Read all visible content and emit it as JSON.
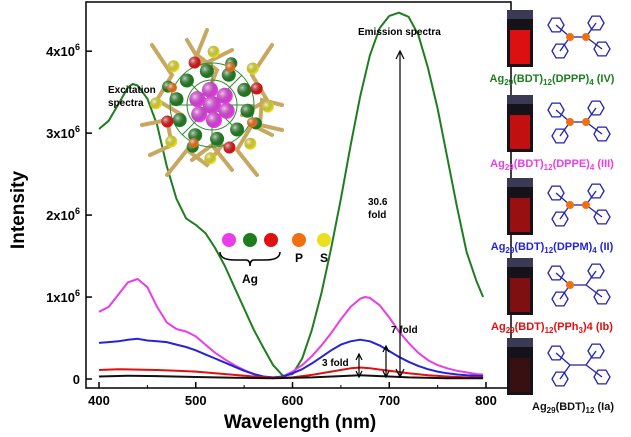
{
  "chart_data": {
    "type": "line",
    "xlabel": "Wavelength (nm)",
    "ylabel": "Intensity",
    "xlim": [
      400,
      800
    ],
    "ylim": [
      0,
      4600000
    ],
    "x_ticks": [
      "400",
      "500",
      "600",
      "700",
      "800"
    ],
    "y_ticks": [
      {
        "v": 0,
        "base": "0",
        "exp": ""
      },
      {
        "v": 1000000,
        "base": "1x10",
        "exp": "6"
      },
      {
        "v": 2000000,
        "base": "2x10",
        "exp": "6"
      },
      {
        "v": 3000000,
        "base": "3x10",
        "exp": "6"
      },
      {
        "v": 4000000,
        "base": "4x10",
        "exp": "6"
      }
    ],
    "annotations": {
      "excitation_line1": "Excitation",
      "excitation_line2": "spectra",
      "emission": "Emission spectra",
      "fold_30_line1": "30.6",
      "fold_30_line2": "fold",
      "fold_7": "7 fold",
      "fold_3": "3 fold"
    },
    "series": [
      {
        "name": "Ag29(BDT)12(DPPP)4 (IV)",
        "color": "#1e7d1e",
        "points": [
          [
            400,
            3050000
          ],
          [
            410,
            3150000
          ],
          [
            420,
            3350000
          ],
          [
            430,
            3560000
          ],
          [
            435,
            3600000
          ],
          [
            440,
            3580000
          ],
          [
            450,
            3420000
          ],
          [
            460,
            3100000
          ],
          [
            470,
            2600000
          ],
          [
            480,
            2200000
          ],
          [
            490,
            1960000
          ],
          [
            500,
            1880000
          ],
          [
            510,
            1780000
          ],
          [
            520,
            1600000
          ],
          [
            530,
            1380000
          ],
          [
            540,
            1120000
          ],
          [
            550,
            860000
          ],
          [
            560,
            600000
          ],
          [
            570,
            380000
          ],
          [
            580,
            170000
          ],
          [
            590,
            40000
          ],
          [
            600,
            60000
          ],
          [
            610,
            250000
          ],
          [
            620,
            600000
          ],
          [
            630,
            1050000
          ],
          [
            640,
            1600000
          ],
          [
            650,
            2200000
          ],
          [
            660,
            2850000
          ],
          [
            670,
            3450000
          ],
          [
            680,
            3950000
          ],
          [
            690,
            4280000
          ],
          [
            700,
            4430000
          ],
          [
            710,
            4470000
          ],
          [
            720,
            4420000
          ],
          [
            730,
            4200000
          ],
          [
            740,
            3800000
          ],
          [
            750,
            3300000
          ],
          [
            760,
            2700000
          ],
          [
            770,
            2100000
          ],
          [
            780,
            1550000
          ],
          [
            790,
            1200000
          ],
          [
            797,
            1000000
          ]
        ]
      },
      {
        "name": "Ag29(BDT)12(DPPE)4 (III)",
        "color": "#e83de8",
        "points": [
          [
            400,
            820000
          ],
          [
            410,
            880000
          ],
          [
            420,
            1030000
          ],
          [
            430,
            1180000
          ],
          [
            440,
            1220000
          ],
          [
            450,
            1120000
          ],
          [
            460,
            880000
          ],
          [
            470,
            690000
          ],
          [
            480,
            610000
          ],
          [
            490,
            580000
          ],
          [
            500,
            520000
          ],
          [
            510,
            420000
          ],
          [
            520,
            320000
          ],
          [
            530,
            240000
          ],
          [
            540,
            170000
          ],
          [
            550,
            110000
          ],
          [
            560,
            60000
          ],
          [
            570,
            25000
          ],
          [
            580,
            10000
          ],
          [
            590,
            30000
          ],
          [
            600,
            90000
          ],
          [
            610,
            170000
          ],
          [
            620,
            280000
          ],
          [
            630,
            410000
          ],
          [
            640,
            560000
          ],
          [
            650,
            730000
          ],
          [
            660,
            880000
          ],
          [
            670,
            980000
          ],
          [
            675,
            1000000
          ],
          [
            680,
            990000
          ],
          [
            690,
            900000
          ],
          [
            700,
            750000
          ],
          [
            710,
            580000
          ],
          [
            720,
            440000
          ],
          [
            730,
            320000
          ],
          [
            740,
            230000
          ],
          [
            750,
            170000
          ],
          [
            760,
            130000
          ],
          [
            770,
            100000
          ],
          [
            780,
            80000
          ],
          [
            790,
            60000
          ],
          [
            797,
            55000
          ]
        ]
      },
      {
        "name": "Ag29(BDT)12(DPPM)4 (II)",
        "color": "#2424d6",
        "points": [
          [
            400,
            440000
          ],
          [
            410,
            450000
          ],
          [
            420,
            460000
          ],
          [
            430,
            480000
          ],
          [
            440,
            490000
          ],
          [
            450,
            470000
          ],
          [
            460,
            460000
          ],
          [
            470,
            450000
          ],
          [
            480,
            420000
          ],
          [
            490,
            390000
          ],
          [
            500,
            350000
          ],
          [
            510,
            300000
          ],
          [
            520,
            250000
          ],
          [
            530,
            200000
          ],
          [
            540,
            150000
          ],
          [
            550,
            100000
          ],
          [
            560,
            60000
          ],
          [
            570,
            30000
          ],
          [
            580,
            20000
          ],
          [
            590,
            30000
          ],
          [
            600,
            70000
          ],
          [
            610,
            120000
          ],
          [
            620,
            190000
          ],
          [
            630,
            270000
          ],
          [
            640,
            350000
          ],
          [
            650,
            420000
          ],
          [
            660,
            460000
          ],
          [
            670,
            480000
          ],
          [
            680,
            460000
          ],
          [
            690,
            410000
          ],
          [
            700,
            340000
          ],
          [
            710,
            270000
          ],
          [
            720,
            210000
          ],
          [
            730,
            160000
          ],
          [
            740,
            120000
          ],
          [
            750,
            90000
          ],
          [
            760,
            70000
          ],
          [
            770,
            55000
          ],
          [
            780,
            45000
          ],
          [
            790,
            40000
          ],
          [
            797,
            35000
          ]
        ]
      },
      {
        "name": "Ag29(BDT)12(PPh3)4 (Ib)",
        "color": "#e01010",
        "points": [
          [
            400,
            110000
          ],
          [
            420,
            120000
          ],
          [
            440,
            115000
          ],
          [
            460,
            110000
          ],
          [
            480,
            100000
          ],
          [
            500,
            90000
          ],
          [
            520,
            70000
          ],
          [
            540,
            50000
          ],
          [
            560,
            30000
          ],
          [
            580,
            15000
          ],
          [
            600,
            20000
          ],
          [
            620,
            50000
          ],
          [
            640,
            90000
          ],
          [
            660,
            130000
          ],
          [
            670,
            140000
          ],
          [
            680,
            130000
          ],
          [
            700,
            100000
          ],
          [
            720,
            70000
          ],
          [
            740,
            45000
          ],
          [
            760,
            30000
          ],
          [
            780,
            20000
          ],
          [
            797,
            15000
          ]
        ]
      },
      {
        "name": "Ag29(BDT)12 (Ia)",
        "color": "#111111",
        "points": [
          [
            400,
            30000
          ],
          [
            430,
            40000
          ],
          [
            460,
            35000
          ],
          [
            500,
            25000
          ],
          [
            540,
            15000
          ],
          [
            580,
            10000
          ],
          [
            620,
            20000
          ],
          [
            650,
            35000
          ],
          [
            670,
            45000
          ],
          [
            690,
            35000
          ],
          [
            720,
            20000
          ],
          [
            760,
            10000
          ],
          [
            797,
            8000
          ]
        ]
      }
    ]
  },
  "inset": {
    "atom_colors": [
      "#e83de8",
      "#1e7d1e",
      "#e01010",
      "#f07010",
      "#e8e020"
    ],
    "ag_label": "Ag",
    "p_label": "P",
    "s_label": "S"
  },
  "samples": [
    {
      "title": "Ag29(BDT)12(DPPP)4 (IV)",
      "pre": "Ag",
      "s1": "29",
      "mid": "(BDT)",
      "s2": "12",
      "mid2": "(DPPP)",
      "s3": "4",
      "post": " (IV)",
      "color": "#1e7d1e",
      "vial_glow": "#ff1010"
    },
    {
      "title": "Ag29(BDT)12(DPPE)4 (III)",
      "pre": "Ag",
      "s1": "29",
      "mid": "(BDT)",
      "s2": "12",
      "mid2": "(DPPE)",
      "s3": "4",
      "post": " (III)",
      "color": "#e83de8",
      "vial_glow": "#e01010"
    },
    {
      "title": "Ag29(BDT)12(DPPM)4 (II)",
      "pre": "Ag",
      "s1": "29",
      "mid": "(BDT)",
      "s2": "12",
      "mid2": "(DPPM)",
      "s3": "4",
      "post": " (II)",
      "color": "#2424d6",
      "vial_glow": "#b01010"
    },
    {
      "title": "Ag29(BDT)12(PPh3)4 (Ib)",
      "pre": "Ag",
      "s1": "29",
      "mid": "(BDT)",
      "s2": "12",
      "mid2": "(PPh",
      "s3": "3",
      "post": ")4 (Ib)",
      "color": "#e01010",
      "vial_glow": "#901010"
    },
    {
      "title": "Ag29(BDT)12 (Ia)",
      "pre": "Ag",
      "s1": "29",
      "mid": "(BDT)",
      "s2": "12",
      "mid2": "",
      "s3": "",
      "post": " (Ia)",
      "color": "#111111",
      "vial_glow": "#401010"
    }
  ]
}
